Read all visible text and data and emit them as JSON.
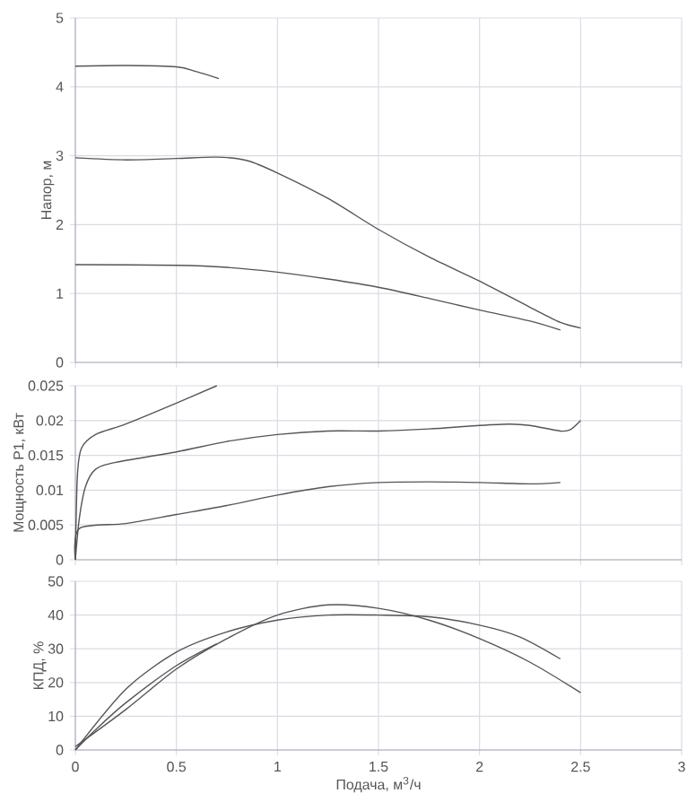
{
  "chart_data": [
    {
      "type": "line",
      "ylabel": "Напор, м",
      "xlim": [
        0,
        3
      ],
      "xticks": [
        0,
        0.5,
        1,
        1.5,
        2,
        2.5,
        3
      ],
      "ylim": [
        0,
        5
      ],
      "yticks": [
        0,
        1,
        2,
        3,
        4,
        5
      ],
      "grid": true,
      "tick_labels": "y",
      "series": [
        {
          "color": "#555555",
          "x": [
            0,
            0.25,
            0.5,
            0.6,
            0.71
          ],
          "values": [
            4.3,
            4.31,
            4.29,
            4.22,
            4.12
          ]
        },
        {
          "color": "#555555",
          "x": [
            0,
            0.25,
            0.5,
            0.7,
            0.85,
            1.0,
            1.25,
            1.5,
            1.75,
            2.0,
            2.25,
            2.4,
            2.5
          ],
          "values": [
            2.97,
            2.94,
            2.96,
            2.98,
            2.93,
            2.75,
            2.38,
            1.93,
            1.53,
            1.18,
            0.8,
            0.58,
            0.5
          ]
        },
        {
          "color": "#555555",
          "x": [
            0,
            0.5,
            0.75,
            1,
            1.25,
            1.5,
            1.75,
            2,
            2.25,
            2.4
          ],
          "values": [
            1.42,
            1.41,
            1.38,
            1.31,
            1.21,
            1.09,
            0.93,
            0.76,
            0.6,
            0.47
          ]
        }
      ]
    },
    {
      "type": "line",
      "ylabel": "Мощность P1, кВт",
      "xlim": [
        0,
        3
      ],
      "xticks": [
        0,
        0.5,
        1,
        1.5,
        2,
        2.5,
        3
      ],
      "ylim": [
        0,
        0.025
      ],
      "yticks": [
        0,
        0.005,
        0.01,
        0.015,
        0.02,
        0.025
      ],
      "grid": true,
      "tick_labels": "y",
      "series": [
        {
          "color": "#555555",
          "x": [
            0,
            0.01,
            0.03,
            0.1,
            0.25,
            0.5,
            0.7
          ],
          "values": [
            0,
            0.012,
            0.016,
            0.018,
            0.0195,
            0.0225,
            0.025
          ]
        },
        {
          "color": "#555555",
          "x": [
            0,
            0.02,
            0.05,
            0.1,
            0.2,
            0.5,
            0.75,
            1,
            1.25,
            1.5,
            1.75,
            2,
            2.15,
            2.25,
            2.4,
            2.45,
            2.5
          ],
          "values": [
            0,
            0.006,
            0.0105,
            0.013,
            0.014,
            0.0155,
            0.017,
            0.018,
            0.0185,
            0.0185,
            0.0188,
            0.0193,
            0.0195,
            0.0193,
            0.0185,
            0.0187,
            0.02
          ]
        },
        {
          "color": "#555555",
          "x": [
            0,
            0.02,
            0.25,
            0.5,
            0.75,
            1,
            1.25,
            1.5,
            1.75,
            2,
            2.25,
            2.4
          ],
          "values": [
            0,
            0.0045,
            0.0052,
            0.0065,
            0.0078,
            0.0093,
            0.0105,
            0.0111,
            0.0112,
            0.0111,
            0.0109,
            0.0111
          ]
        }
      ]
    },
    {
      "type": "line",
      "xlabel": "Подача, м$^{3}$/ч",
      "ylabel": "КПД, %",
      "xlim": [
        0,
        3
      ],
      "xticks": [
        0,
        0.5,
        1,
        1.5,
        2,
        2.5,
        3
      ],
      "ylim": [
        0,
        50
      ],
      "yticks": [
        0,
        10,
        20,
        30,
        40,
        50
      ],
      "grid": true,
      "series": [
        {
          "color": "#555555",
          "x": [
            0,
            0.1,
            0.25,
            0.5,
            0.7
          ],
          "values": [
            0,
            6,
            14,
            25,
            31.5
          ]
        },
        {
          "color": "#555555",
          "x": [
            0,
            0.25,
            0.5,
            0.75,
            1,
            1.25,
            1.5,
            1.75,
            2,
            2.25,
            2.5
          ],
          "values": [
            1,
            12,
            24,
            33,
            40,
            43,
            42,
            38.5,
            33,
            26,
            17
          ]
        },
        {
          "color": "#555555",
          "x": [
            0,
            0.25,
            0.5,
            0.75,
            1,
            1.25,
            1.5,
            1.75,
            2,
            2.2,
            2.4
          ],
          "values": [
            0,
            18,
            29,
            35,
            38.5,
            40,
            40,
            39.5,
            37,
            33.5,
            27
          ]
        }
      ]
    }
  ]
}
